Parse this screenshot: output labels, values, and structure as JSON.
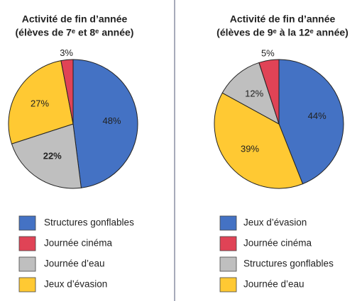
{
  "chart_data": [
    {
      "type": "pie",
      "title": "Activité de fin d’année",
      "subtitle": "(élèves de 7ᵉ et 8ᵉ année)",
      "series": [
        {
          "name": "Structures gonflables",
          "color": "#4472c4",
          "values": [
            48
          ],
          "value_labels": [
            "48%"
          ]
        },
        {
          "name": "Journée d’eau",
          "color": "#bfbfbf",
          "values": [
            22
          ],
          "value_labels": [
            "22%"
          ]
        },
        {
          "name": "Jeux d’évasion",
          "color": "#ffc933",
          "values": [
            27
          ],
          "value_labels": [
            "27%"
          ]
        },
        {
          "name": "Journée cinéma",
          "color": "#e04356",
          "values": [
            3
          ],
          "value_labels": [
            "3%"
          ]
        }
      ]
    },
    {
      "type": "pie",
      "title": "Activité de fin d’année",
      "subtitle": "(élèves de 9ᵉ à la 12ᵉ année)",
      "series": [
        {
          "name": "Jeux d’évasion",
          "color": "#4472c4",
          "values": [
            44
          ],
          "value_labels": [
            "44%"
          ]
        },
        {
          "name": "Journée d’eau",
          "color": "#ffc933",
          "values": [
            39
          ],
          "value_labels": [
            "39%"
          ]
        },
        {
          "name": "Structures gonflables",
          "color": "#bfbfbf",
          "values": [
            12
          ],
          "value_labels": [
            "12%"
          ]
        },
        {
          "name": "Journée cinéma",
          "color": "#e04356",
          "values": [
            5
          ],
          "value_labels": [
            "5%"
          ]
        }
      ]
    }
  ]
}
